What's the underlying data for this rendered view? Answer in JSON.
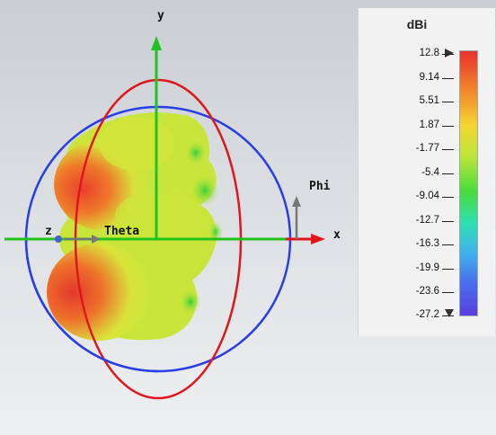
{
  "scene": {
    "axes": {
      "y": "y",
      "x": "x",
      "z": "z"
    },
    "direction_labels": {
      "theta": "Theta",
      "phi": "Phi"
    }
  },
  "legend": {
    "unit": "dBi",
    "ticks": [
      "12.8",
      "9.14",
      "5.51",
      "1.87",
      "-1.77",
      "-5.4",
      "-9.04",
      "-12.7",
      "-16.3",
      "-19.9",
      "-23.6",
      "-27.2"
    ],
    "max_marker_icon": "triangle-right-icon",
    "min_marker_icon": "triangle-down-icon"
  }
}
